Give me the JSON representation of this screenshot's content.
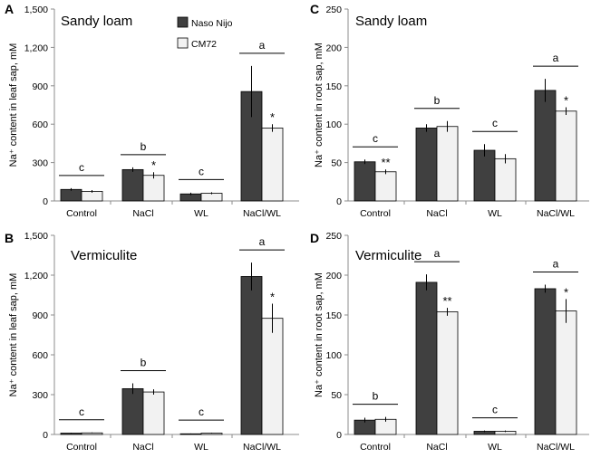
{
  "legend": {
    "series1": "Naso Nijo",
    "series2": "CM72"
  },
  "colors": {
    "series1": "#404040",
    "series2": "#f2f2f2",
    "axis": "#8c8c8c",
    "edge": "#000000"
  },
  "chart_data": [
    {
      "panel": "A",
      "type": "bar",
      "title": "Sandy loam",
      "ylabel": "Na⁺ content in leaf sap, mM",
      "ylim": [
        0,
        1500
      ],
      "yticks": [
        0,
        300,
        600,
        900,
        1200,
        1500
      ],
      "ytick_labels": [
        "0",
        "300",
        "600",
        "900",
        "1,200",
        "1,500"
      ],
      "categories": [
        "Control",
        "NaCl",
        "WL",
        "NaCl/WL"
      ],
      "series": [
        {
          "name": "Naso Nijo",
          "values": [
            90,
            245,
            55,
            855
          ],
          "errors": [
            10,
            18,
            10,
            200
          ]
        },
        {
          "name": "CM72",
          "values": [
            75,
            200,
            60,
            570
          ],
          "errors": [
            10,
            25,
            8,
            30
          ]
        }
      ],
      "significance": [
        "c",
        "b",
        "c",
        "a"
      ],
      "stars": [
        "",
        "*",
        "",
        "*"
      ]
    },
    {
      "panel": "B",
      "type": "bar",
      "title": "Vermiculite",
      "ylabel": "Na⁺ content in leaf sap, mM",
      "ylim": [
        0,
        1500
      ],
      "yticks": [
        0,
        300,
        600,
        900,
        1200,
        1500
      ],
      "ytick_labels": [
        "0",
        "300",
        "600",
        "900",
        "1,200",
        "1,500"
      ],
      "categories": [
        "Control",
        "NaCl",
        "WL",
        "NaCl/WL"
      ],
      "series": [
        {
          "name": "Naso Nijo",
          "values": [
            10,
            345,
            5,
            1190
          ],
          "errors": [
            3,
            40,
            3,
            105
          ]
        },
        {
          "name": "CM72",
          "values": [
            12,
            320,
            10,
            875
          ],
          "errors": [
            3,
            20,
            3,
            110
          ]
        }
      ],
      "significance": [
        "c",
        "b",
        "c",
        "a"
      ],
      "stars": [
        "",
        "",
        "",
        "*"
      ]
    },
    {
      "panel": "C",
      "type": "bar",
      "title": "Sandy loam",
      "ylabel": "Na⁺ content in root sap, mM",
      "ylim": [
        0,
        250
      ],
      "yticks": [
        0,
        50,
        100,
        150,
        200,
        250
      ],
      "ytick_labels": [
        "0",
        "50",
        "100",
        "150",
        "200",
        "250"
      ],
      "categories": [
        "Control",
        "NaCl",
        "WL",
        "NaCl/WL"
      ],
      "series": [
        {
          "name": "Naso Nijo",
          "values": [
            51,
            95,
            66,
            144
          ],
          "errors": [
            3,
            5,
            8,
            15
          ]
        },
        {
          "name": "CM72",
          "values": [
            38,
            97,
            55,
            117
          ],
          "errors": [
            3,
            7,
            6,
            5
          ]
        }
      ],
      "significance": [
        "c",
        "b",
        "c",
        "a"
      ],
      "stars": [
        "**",
        "",
        "",
        "*"
      ]
    },
    {
      "panel": "D",
      "type": "bar",
      "title": "Vermiculite",
      "ylabel": "Na⁺ content in root sap, mM",
      "ylim": [
        0,
        250
      ],
      "yticks": [
        0,
        50,
        100,
        150,
        200,
        250
      ],
      "ytick_labels": [
        "0",
        "50",
        "100",
        "150",
        "200",
        "250"
      ],
      "categories": [
        "Control",
        "NaCl",
        "WL",
        "NaCl/WL"
      ],
      "series": [
        {
          "name": "Naso Nijo",
          "values": [
            18,
            191,
            4,
            183
          ],
          "errors": [
            3,
            10,
            1,
            5
          ]
        },
        {
          "name": "CM72",
          "values": [
            19,
            154,
            4,
            155
          ],
          "errors": [
            3,
            5,
            1,
            15
          ]
        }
      ],
      "significance": [
        "b",
        "a",
        "c",
        "a"
      ],
      "stars": [
        "",
        "**",
        "",
        "*"
      ]
    }
  ]
}
